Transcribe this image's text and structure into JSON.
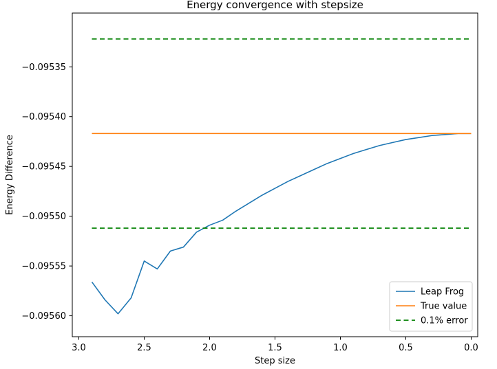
{
  "chart_data": {
    "type": "line",
    "title": "Energy convergence with stepsize",
    "xlabel": "Step size",
    "ylabel": "Energy Difference",
    "x_inverted": true,
    "xlim": [
      3.05,
      -0.05
    ],
    "ylim": [
      -0.095621,
      -0.095296
    ],
    "x_ticks": [
      3.0,
      2.5,
      2.0,
      1.5,
      1.0,
      0.5,
      0.0
    ],
    "x_tick_labels": [
      "3.0",
      "2.5",
      "2.0",
      "1.5",
      "1.0",
      "0.5",
      "0.0"
    ],
    "y_ticks": [
      -0.09535,
      -0.0954,
      -0.09545,
      -0.0955,
      -0.09555,
      -0.0956
    ],
    "y_tick_labels": [
      "−0.09535",
      "−0.09540",
      "−0.09545",
      "−0.09550",
      "−0.09555",
      "−0.09560"
    ],
    "grid": false,
    "legend_position": "lower-right",
    "series": [
      {
        "name": "Leap Frog",
        "color": "#1f77b4",
        "style": "solid",
        "x": [
          2.9,
          2.8,
          2.7,
          2.6,
          2.5,
          2.4,
          2.3,
          2.2,
          2.1,
          2.0,
          1.9,
          1.8,
          1.7,
          1.6,
          1.5,
          1.4,
          1.3,
          1.2,
          1.1,
          1.0,
          0.9,
          0.8,
          0.7,
          0.6,
          0.5,
          0.4,
          0.3,
          0.2,
          0.1,
          0.0
        ],
        "y": [
          -0.095566,
          -0.095584,
          -0.095598,
          -0.095582,
          -0.095545,
          -0.095553,
          -0.095535,
          -0.095531,
          -0.095516,
          -0.095509,
          -0.095504,
          -0.095495,
          -0.095487,
          -0.095479,
          -0.095472,
          -0.095465,
          -0.095459,
          -0.095453,
          -0.095447,
          -0.095442,
          -0.095437,
          -0.095433,
          -0.095429,
          -0.095426,
          -0.095423,
          -0.095421,
          -0.095419,
          -0.095418,
          -0.095417,
          -0.095417
        ]
      },
      {
        "name": "True value",
        "color": "#ff7f0e",
        "style": "solid",
        "x": [
          2.9,
          0.0
        ],
        "y": [
          -0.095417,
          -0.095417
        ]
      },
      {
        "name": "0.1% error",
        "color": "#008000",
        "style": "dashed",
        "x": [
          2.9,
          0.0
        ],
        "y": [
          -0.095322,
          -0.095322
        ]
      },
      {
        "name": "",
        "legend_hidden": true,
        "color": "#008000",
        "style": "dashed",
        "x": [
          2.9,
          0.0
        ],
        "y": [
          -0.095512,
          -0.095512
        ]
      }
    ]
  }
}
